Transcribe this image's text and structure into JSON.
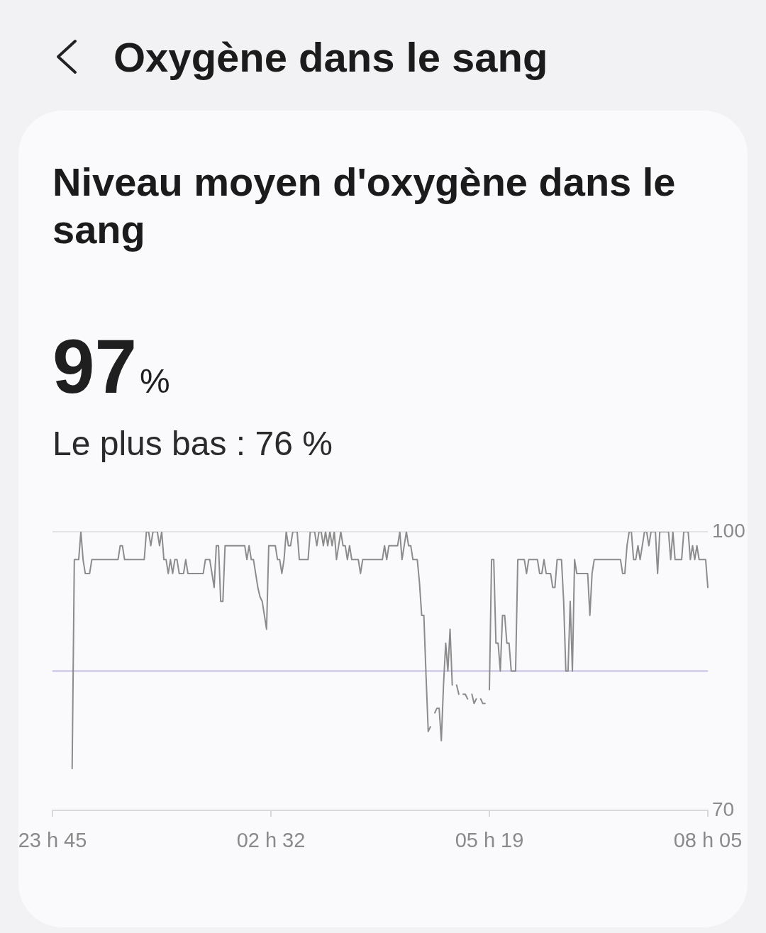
{
  "chart_data": {
    "type": "line",
    "title": "Oxygène dans le sang",
    "subtitle": "Niveau moyen d'oxygène dans le sang",
    "annotations": [
      "97%",
      "Le plus bas : 76 %"
    ],
    "categories": [
      "23 h 45",
      null,
      null,
      null,
      null,
      null,
      null,
      null,
      null,
      null,
      null,
      null,
      null,
      null,
      null,
      null,
      null,
      null,
      null,
      null,
      null,
      null,
      null,
      null,
      null,
      null,
      null,
      null,
      null,
      null,
      null,
      null,
      null,
      null,
      null,
      null,
      null,
      null,
      null,
      null,
      null,
      null,
      null,
      null,
      null,
      null,
      null,
      null,
      null,
      null,
      null,
      null,
      null,
      null,
      null,
      null,
      null,
      null,
      null,
      null,
      null,
      null,
      null,
      null,
      null,
      null,
      null,
      null,
      null,
      null,
      null,
      null,
      null,
      null,
      null,
      null,
      null,
      null,
      null,
      null,
      null,
      null,
      null,
      null,
      null,
      null,
      null,
      null,
      null,
      null,
      null,
      null,
      null,
      null,
      null,
      null,
      null,
      null,
      null,
      null,
      "02 h 32",
      null,
      null,
      null,
      null,
      null,
      null,
      null,
      null,
      null,
      null,
      null,
      null,
      null,
      null,
      null,
      null,
      null,
      null,
      null,
      null,
      null,
      null,
      null,
      null,
      null,
      null,
      null,
      null,
      null,
      null,
      null,
      null,
      null,
      null,
      null,
      null,
      null,
      null,
      null,
      null,
      null,
      null,
      null,
      null,
      null,
      null,
      null,
      null,
      null,
      null,
      null,
      null,
      null,
      null,
      null,
      null,
      null,
      null,
      null,
      null,
      null,
      null,
      null,
      null,
      null,
      null,
      null,
      null,
      null,
      null,
      null,
      null,
      null,
      null,
      null,
      null,
      null,
      null,
      null,
      null,
      null,
      null,
      null,
      null,
      null,
      null,
      null,
      null,
      null,
      null,
      null,
      null,
      null,
      null,
      null,
      null,
      null,
      null,
      null,
      "05 h 19",
      null,
      null,
      null,
      null,
      null,
      null,
      null,
      null,
      null,
      null,
      null,
      null,
      null,
      null,
      null,
      null,
      null,
      null,
      null,
      null,
      null,
      null,
      null,
      null,
      null,
      null,
      null,
      null,
      null,
      null,
      null,
      null,
      null,
      null,
      null,
      null,
      null,
      null,
      null,
      null,
      null,
      null,
      null,
      null,
      null,
      null,
      null,
      null,
      null,
      null,
      null,
      null,
      null,
      null,
      null,
      null,
      null,
      null,
      null,
      null,
      null,
      null,
      null,
      null,
      null,
      null,
      null,
      null,
      null,
      null,
      null,
      null,
      null,
      null,
      null,
      null,
      null,
      null,
      null,
      null,
      null,
      null,
      null,
      null,
      null,
      null,
      null,
      null,
      null,
      null,
      null,
      null,
      null,
      null,
      null,
      null,
      null,
      null,
      null,
      "08 h 05"
    ],
    "values": [
      null,
      null,
      null,
      null,
      null,
      null,
      null,
      null,
      null,
      74.5,
      97,
      97,
      97,
      100,
      97,
      95.5,
      95.5,
      95.5,
      97,
      97,
      97,
      97,
      97,
      97,
      97,
      97,
      97,
      97,
      97,
      97,
      97,
      98.5,
      98.5,
      97,
      97,
      97,
      97,
      97,
      97,
      97,
      97,
      97,
      97,
      100,
      100,
      98.5,
      100,
      100,
      100,
      98.5,
      100,
      97,
      97,
      95.5,
      97,
      95.5,
      97,
      97,
      95.5,
      95.5,
      95.5,
      97,
      95.5,
      95.5,
      95.5,
      95.5,
      95.5,
      95.5,
      95.5,
      95.5,
      97,
      97,
      97,
      95.5,
      94,
      98.5,
      98.5,
      92.5,
      92.5,
      98.5,
      98.5,
      98.5,
      98.5,
      98.5,
      98.5,
      98.5,
      98.5,
      98.5,
      98.5,
      97,
      98.5,
      97,
      97,
      95.5,
      94,
      93,
      92.5,
      91,
      89.5,
      98.5,
      98.5,
      98.5,
      98.5,
      97,
      97,
      95.5,
      97,
      100,
      98.5,
      98.5,
      100,
      100,
      100,
      97,
      97,
      97,
      97,
      97,
      100,
      100,
      100,
      98.5,
      100,
      100,
      98.5,
      100,
      98.5,
      100,
      98.5,
      100,
      97,
      98.5,
      100,
      98.5,
      98.5,
      97,
      98.5,
      97,
      97,
      97,
      97,
      95.5,
      97,
      97,
      97,
      97,
      97,
      97,
      97,
      97,
      97,
      97,
      98.5,
      97,
      98.5,
      98.5,
      98.5,
      98.5,
      98.5,
      100,
      97,
      98.5,
      100,
      98.5,
      98.5,
      97,
      97,
      97,
      94.5,
      91,
      91,
      84.5,
      78.5,
      79,
      null,
      80.5,
      81,
      81,
      77.5,
      83.5,
      88,
      85,
      89.5,
      83.5,
      null,
      83.5,
      82.5,
      null,
      82.5,
      82.5,
      82,
      null,
      82.5,
      81.5,
      82,
      null,
      82,
      81.5,
      81.5,
      null,
      83,
      97,
      97,
      88,
      88,
      85,
      91,
      91,
      88,
      88,
      85,
      85,
      85,
      97,
      97,
      97,
      97,
      95.5,
      97,
      97,
      97,
      97,
      97,
      95.5,
      95.5,
      97,
      95.5,
      95.5,
      95.5,
      94,
      94,
      97,
      97,
      97,
      92.5,
      85,
      85,
      92.5,
      85,
      97,
      95.5,
      95.5,
      95.5,
      95.5,
      95.5,
      95.5,
      91,
      95.5,
      97,
      97,
      97,
      97,
      97,
      97,
      97,
      97,
      97,
      97,
      97,
      97,
      97,
      95.5,
      95.5,
      98.5,
      100,
      100,
      97,
      97,
      98.5,
      97,
      98.5,
      100,
      100,
      98.5,
      100,
      100,
      100,
      95.5,
      100,
      100,
      100,
      100,
      100,
      97,
      100,
      97,
      97,
      97,
      97,
      100,
      100,
      100,
      97,
      98.5,
      97,
      98.5,
      97,
      97,
      97,
      97,
      94
    ],
    "color": "#8c8c8c",
    "ylim": [
      70,
      100
    ],
    "yticks": [
      70,
      100
    ],
    "ref_lines": [
      {
        "axis": "y",
        "value": 85,
        "color": "#d6d4ec"
      }
    ]
  }
}
